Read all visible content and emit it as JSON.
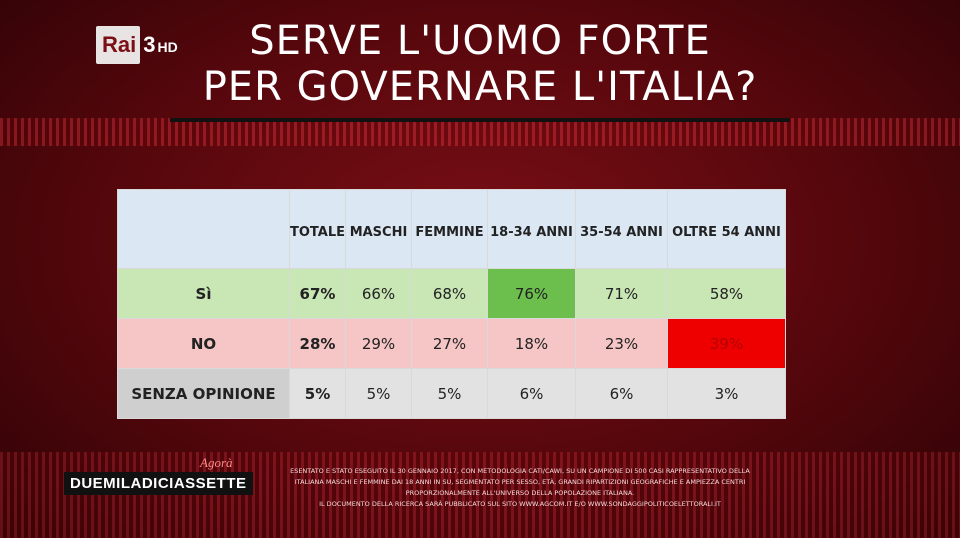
{
  "logo": {
    "brand": "Rai",
    "channel": "3",
    "hd": "HD"
  },
  "title_line1": "SERVE L'UOMO FORTE",
  "title_line2": "PER GOVERNARE L'ITALIA?",
  "footer": {
    "agora": "Agorà",
    "program": "DUEMILADICIASSETTE",
    "note_line1": "ESENTATO E STATO ESEGUITO IL 30 GENNAIO 2017, CON METODOLOGIA CATI/CAWI, SU UN CAMPIONE DI 500 CASI RAPPRESENTATIVO DELLA",
    "note_line2": "ITALIANA MASCHI E FEMMINE DAI 18 ANNI IN SU, SEGMENTATO PER SESSO, ETÀ, GRANDI RIPARTIZIONI GEOGRAFICHE E AMPIEZZA CENTRI",
    "note_line3": "PROPORZIONALMENTE ALL'UNIVERSO DELLA POPOLAZIONE ITALIANA.",
    "note_line4": "IL DOCUMENTO DELLA RICERCA SARÀ PUBBLICATO SUL SITO WWW.AGCOM.IT E/O WWW.SONDAGGIPOLITICOELETTORALI.IT"
  },
  "colors": {
    "si_row": "#c9e6b5",
    "si_highlight": "#6cbf4c",
    "no_row": "#f6c5c5",
    "no_highlight": "#ee0000",
    "header": "#dbe8f4"
  },
  "chart_data": {
    "type": "table",
    "title": "SERVE L'UOMO FORTE PER GOVERNARE L'ITALIA?",
    "columns": [
      "TOTALE",
      "MASCHI",
      "FEMMINE",
      "18-34 ANNI",
      "35-54 ANNI",
      "OLTRE 54 ANNI"
    ],
    "rows": [
      {
        "label": "Sì",
        "values": [
          "67%",
          "66%",
          "68%",
          "76%",
          "71%",
          "58%"
        ]
      },
      {
        "label": "NO",
        "values": [
          "28%",
          "29%",
          "27%",
          "18%",
          "23%",
          "39%"
        ]
      },
      {
        "label": "SENZA OPINIONE",
        "values": [
          "5%",
          "5%",
          "5%",
          "6%",
          "6%",
          "3%"
        ]
      }
    ]
  }
}
